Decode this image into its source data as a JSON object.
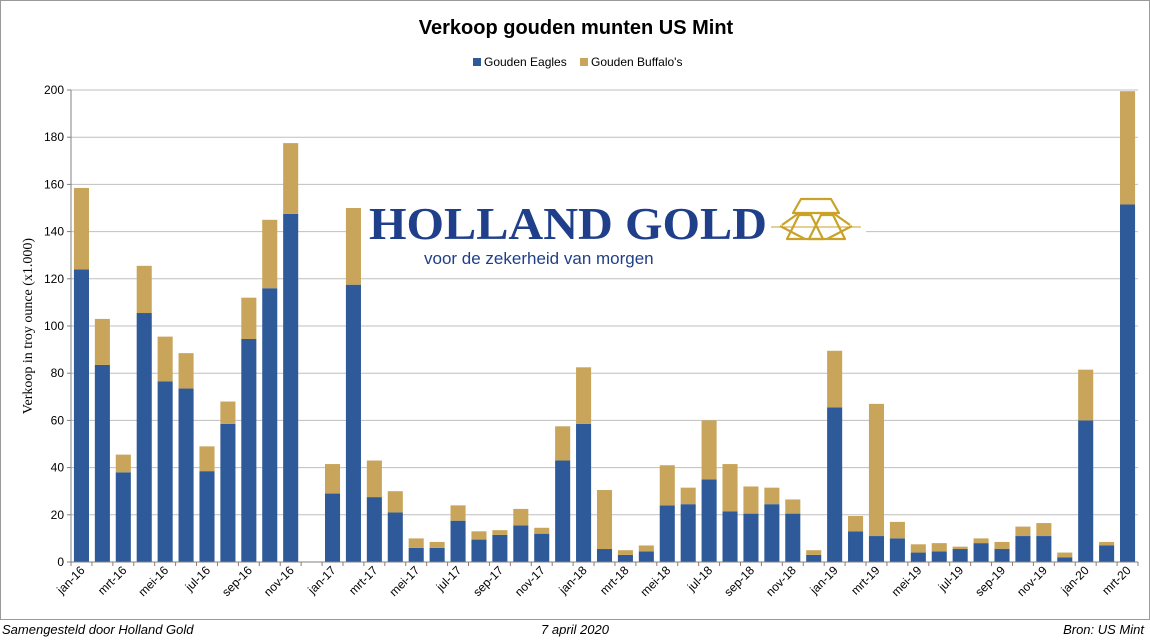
{
  "chart_data": {
    "type": "bar",
    "stacked": true,
    "title": "Verkoop gouden munten US Mint",
    "ylabel": "Verkoop in troy ounce (x1.000)",
    "xlabel": "",
    "ylim": [
      0,
      200
    ],
    "yticks": [
      0,
      20,
      40,
      60,
      80,
      100,
      120,
      140,
      160,
      180,
      200
    ],
    "grid": true,
    "legend_position": "top-center",
    "categories": [
      "jan-16",
      "feb-16",
      "mrt-16",
      "apr-16",
      "mei-16",
      "jun-16",
      "jul-16",
      "aug-16",
      "sep-16",
      "okt-16",
      "nov-16",
      "dec-16",
      "jan-17",
      "feb-17",
      "mrt-17",
      "apr-17",
      "mei-17",
      "jun-17",
      "jul-17",
      "aug-17",
      "sep-17",
      "okt-17",
      "nov-17",
      "dec-17",
      "jan-18",
      "feb-18",
      "mrt-18",
      "apr-18",
      "mei-18",
      "jun-18",
      "jul-18",
      "aug-18",
      "sep-18",
      "okt-18",
      "nov-18",
      "dec-18",
      "jan-19",
      "feb-19",
      "mrt-19",
      "apr-19",
      "mei-19",
      "jun-19",
      "jul-19",
      "aug-19",
      "sep-19",
      "okt-19",
      "nov-19",
      "dec-19",
      "jan-20",
      "feb-20",
      "mrt-20"
    ],
    "xtick_labels": [
      "jan-16",
      "",
      "mrt-16",
      "",
      "mei-16",
      "",
      "jul-16",
      "",
      "sep-16",
      "",
      "nov-16",
      "",
      "jan-17",
      "",
      "mrt-17",
      "",
      "mei-17",
      "",
      "jul-17",
      "",
      "sep-17",
      "",
      "nov-17",
      "",
      "jan-18",
      "",
      "mrt-18",
      "",
      "mei-18",
      "",
      "jul-18",
      "",
      "sep-18",
      "",
      "nov-18",
      "",
      "jan-19",
      "",
      "mrt-19",
      "",
      "mei-19",
      "",
      "jul-19",
      "",
      "sep-19",
      "",
      "nov-19",
      "",
      "jan-20",
      "",
      "mrt-20"
    ],
    "series": [
      {
        "name": "Gouden Eagles",
        "color": "#2e5a99",
        "values": [
          124,
          83.5,
          38,
          105.5,
          76.5,
          73.5,
          38.5,
          58.5,
          94.5,
          116,
          147.5,
          0,
          29,
          117.5,
          27.5,
          21,
          6,
          6,
          17.5,
          9.5,
          11.5,
          15.5,
          12,
          43,
          58.5,
          5.5,
          3,
          4.5,
          24,
          24.5,
          35,
          21.5,
          20.5,
          24.5,
          20.5,
          3,
          65.5,
          13,
          11,
          10,
          4,
          4.5,
          5.5,
          8,
          5.5,
          11,
          11,
          2,
          60,
          7,
          151.5
        ]
      },
      {
        "name": "Gouden Buffalo's",
        "color": "#c8a55a",
        "values": [
          34.5,
          19.5,
          7.5,
          20,
          19,
          15,
          10.5,
          9.5,
          17.5,
          29,
          30,
          0,
          12.5,
          32.5,
          15.5,
          9,
          4,
          2.5,
          6.5,
          3.5,
          2,
          7,
          2.5,
          14.5,
          24,
          25,
          2,
          2.5,
          17,
          7,
          25,
          20,
          11.5,
          7,
          6,
          2,
          24,
          6.5,
          56,
          7,
          3.5,
          3.5,
          1,
          2,
          3,
          4,
          5.5,
          2,
          21.5,
          1.5,
          48
        ]
      }
    ]
  },
  "logo": {
    "name": "HOLLAND GOLD",
    "tagline": "voor de zekerheid van morgen",
    "color_blue": "#1f3f8a",
    "color_gold": "#c9a227"
  },
  "footer": {
    "left": "Samengesteld door Holland Gold",
    "center": "7 april 2020",
    "right": "Bron: US Mint"
  }
}
